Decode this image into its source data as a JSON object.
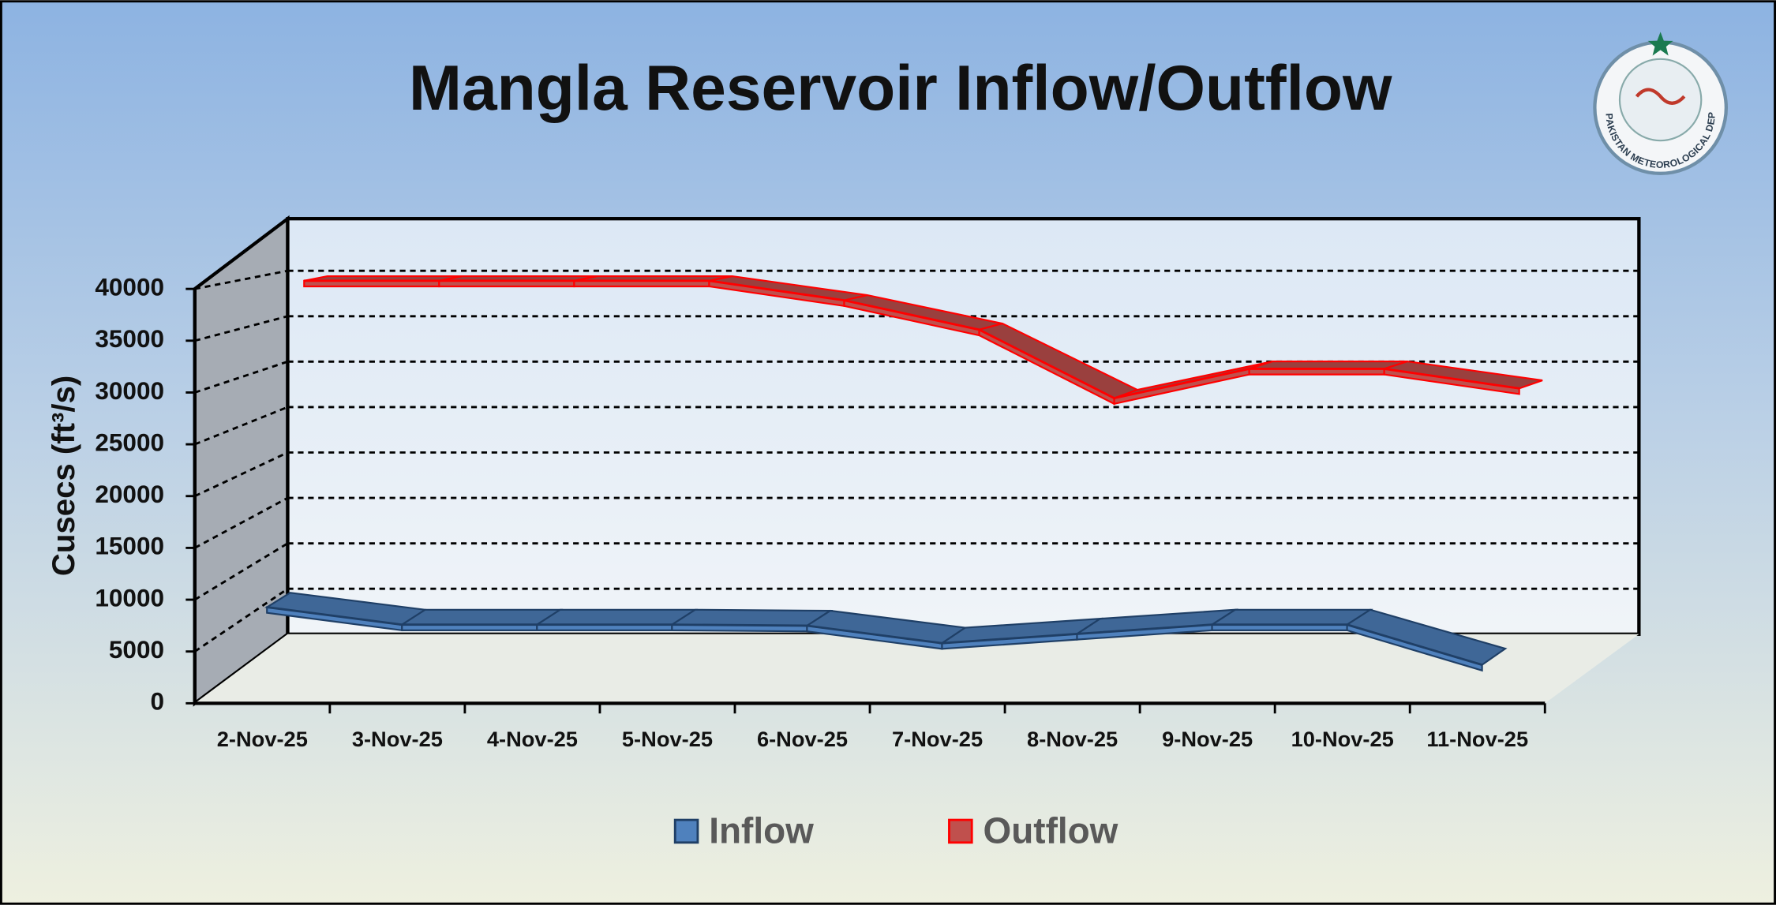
{
  "chart_data": {
    "type": "line3d",
    "title": "Mangla Reservoir Inflow/Outflow",
    "y_label": "Cusecs (ft³/s)",
    "categories": [
      "2-Nov-25",
      "3-Nov-25",
      "4-Nov-25",
      "5-Nov-25",
      "6-Nov-25",
      "7-Nov-25",
      "8-Nov-25",
      "9-Nov-25",
      "10-Nov-25",
      "11-Nov-25"
    ],
    "series": [
      {
        "name": "Inflow",
        "color": "#4f81bd",
        "values": [
          9000,
          7300,
          7300,
          7300,
          7200,
          5500,
          6400,
          7300,
          7300,
          3400
        ]
      },
      {
        "name": "Outflow",
        "color": "#c0504d",
        "values": [
          40000,
          40000,
          40000,
          40000,
          38000,
          35000,
          28000,
          31000,
          31000,
          29000
        ]
      }
    ],
    "ylim": [
      0,
      40000
    ],
    "yticks": [
      0,
      5000,
      10000,
      15000,
      20000,
      25000,
      30000,
      35000,
      40000
    ],
    "grid": true,
    "logo_text": "PAKISTAN METEOROLOGICAL DEPARTMENT"
  }
}
